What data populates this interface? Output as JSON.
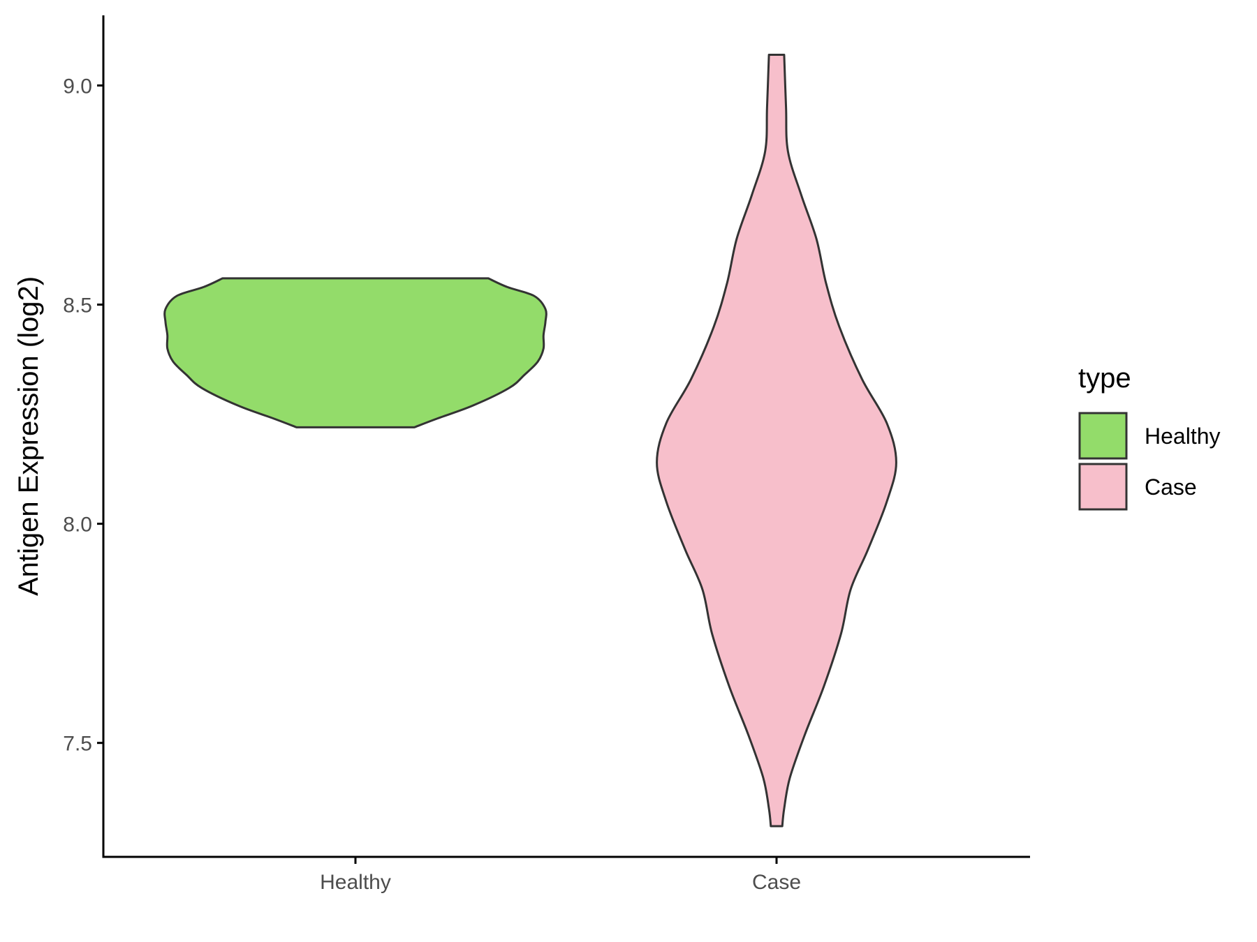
{
  "chart_data": {
    "type": "violin",
    "xlabel": "",
    "ylabel": "Antigen Expression (log2)",
    "ylim": [
      7.24,
      9.16
    ],
    "yticks": [
      "7.5",
      "8.0",
      "8.5",
      "9.0"
    ],
    "ytick_values": [
      7.5,
      8.0,
      8.5,
      9.0
    ],
    "categories": [
      "Healthy",
      "Case"
    ],
    "grid": false,
    "legend": {
      "title": "type",
      "position": "right",
      "entries": [
        "Healthy",
        "Case"
      ]
    },
    "series": [
      {
        "name": "Healthy",
        "color": "#93DC6A",
        "min": 8.22,
        "max": 8.56,
        "density_profile": [
          [
            8.22,
            0.31
          ],
          [
            8.24,
            0.43
          ],
          [
            8.27,
            0.62
          ],
          [
            8.31,
            0.81
          ],
          [
            8.34,
            0.89
          ],
          [
            8.37,
            0.96
          ],
          [
            8.4,
            0.99
          ],
          [
            8.43,
            0.99
          ],
          [
            8.46,
            1.0
          ],
          [
            8.49,
            1.0
          ],
          [
            8.52,
            0.94
          ],
          [
            8.54,
            0.8
          ],
          [
            8.56,
            0.7
          ]
        ]
      },
      {
        "name": "Case",
        "color": "#F7BFCB",
        "min": 7.31,
        "max": 9.07,
        "density_profile": [
          [
            7.31,
            0.03
          ],
          [
            7.35,
            0.04
          ],
          [
            7.42,
            0.07
          ],
          [
            7.52,
            0.15
          ],
          [
            7.63,
            0.25
          ],
          [
            7.75,
            0.34
          ],
          [
            7.85,
            0.39
          ],
          [
            7.94,
            0.48
          ],
          [
            8.05,
            0.58
          ],
          [
            8.14,
            0.63
          ],
          [
            8.23,
            0.58
          ],
          [
            8.33,
            0.45
          ],
          [
            8.45,
            0.33
          ],
          [
            8.55,
            0.26
          ],
          [
            8.65,
            0.21
          ],
          [
            8.75,
            0.13
          ],
          [
            8.85,
            0.06
          ],
          [
            8.95,
            0.05
          ],
          [
            9.07,
            0.04
          ]
        ]
      }
    ]
  }
}
